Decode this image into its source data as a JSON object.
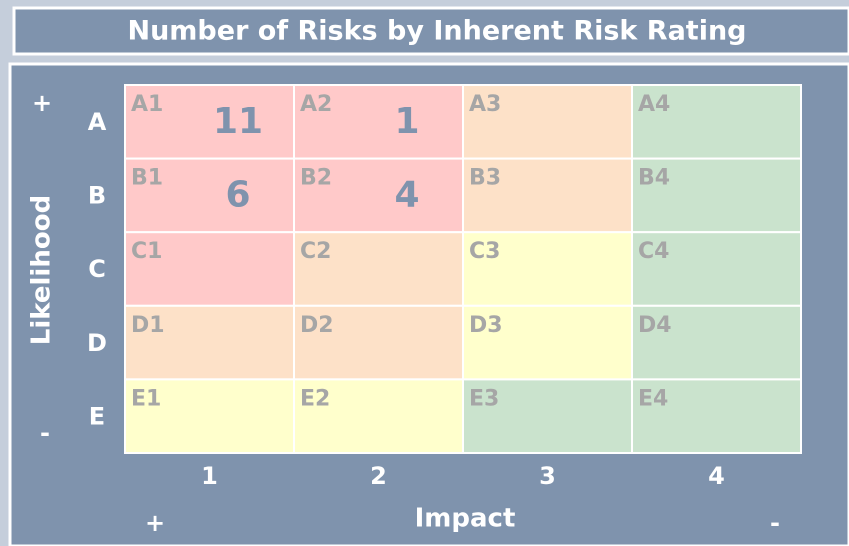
{
  "chart_data": {
    "type": "heatmap",
    "title": "Number of Risks by Inherent Risk Rating",
    "y_label": "Likelihood",
    "x_label": "Impact",
    "y_high": "+",
    "y_low": "-",
    "x_high": "+",
    "x_low": "-",
    "rows": [
      "A",
      "B",
      "C",
      "D",
      "E"
    ],
    "columns": [
      "1",
      "2",
      "3",
      "4"
    ],
    "cell_labels": [
      [
        "A1",
        "A2",
        "A3",
        "A4"
      ],
      [
        "B1",
        "B2",
        "B3",
        "B4"
      ],
      [
        "C1",
        "C2",
        "C3",
        "C4"
      ],
      [
        "D1",
        "D2",
        "D3",
        "D4"
      ],
      [
        "E1",
        "E2",
        "E3",
        "E4"
      ]
    ],
    "values": [
      [
        11,
        1,
        null,
        null
      ],
      [
        6,
        4,
        null,
        null
      ],
      [
        null,
        null,
        null,
        null
      ],
      [
        null,
        null,
        null,
        null
      ],
      [
        null,
        null,
        null,
        null
      ]
    ],
    "colors": [
      [
        "#ffc9c9",
        "#ffc9c9",
        "#fde1c8",
        "#cae3cd"
      ],
      [
        "#ffc9c9",
        "#ffc9c9",
        "#fde1c8",
        "#cae3cd"
      ],
      [
        "#ffc9c9",
        "#fde1c8",
        "#ffffcc",
        "#cae3cd"
      ],
      [
        "#fde1c8",
        "#fde1c8",
        "#ffffcc",
        "#cae3cd"
      ],
      [
        "#ffffcc",
        "#ffffcc",
        "#cae3cd",
        "#cae3cd"
      ]
    ]
  }
}
